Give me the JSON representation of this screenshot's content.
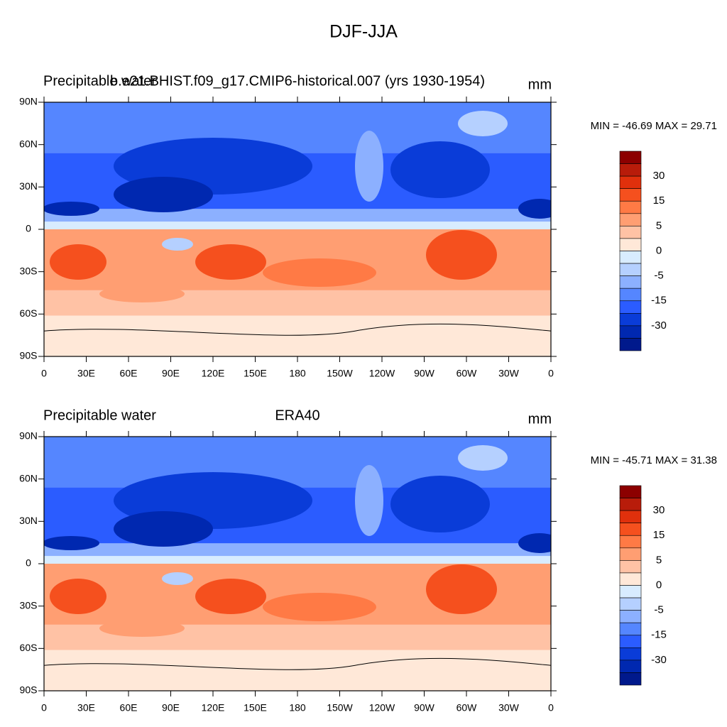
{
  "title": "DJF-JJA",
  "lon_labels": [
    "0",
    "30E",
    "60E",
    "90E",
    "120E",
    "150E",
    "180",
    "150W",
    "120W",
    "90W",
    "60W",
    "30W",
    "0"
  ],
  "lat_labels": [
    "90N",
    "60N",
    "30N",
    "0",
    "30S",
    "60S",
    "90S"
  ],
  "colorbar": {
    "labels": [
      "30",
      "15",
      "5",
      "0",
      "-5",
      "-15",
      "-30"
    ],
    "colors": [
      "#8c0000",
      "#b81c0a",
      "#e0300c",
      "#f5501e",
      "#ff7a45",
      "#ff9e72",
      "#ffc2a5",
      "#ffe8d8",
      "#d8ecff",
      "#b5d0ff",
      "#8cb0ff",
      "#5586ff",
      "#2b5cff",
      "#0a3cd8",
      "#0028b0",
      "#00198c"
    ]
  },
  "panels": [
    {
      "left_title": "Precipitable water",
      "center_title": "b.e21.BHIST.f09_g17.CMIP6-historical.007 (yrs 1930-1954)",
      "units": "mm",
      "minmax": "MIN = -46.69 MAX =  29.71"
    },
    {
      "left_title": "Precipitable water",
      "center_title": "ERA40",
      "units": "mm",
      "minmax": "MIN = -45.71 MAX =  31.38"
    }
  ]
}
